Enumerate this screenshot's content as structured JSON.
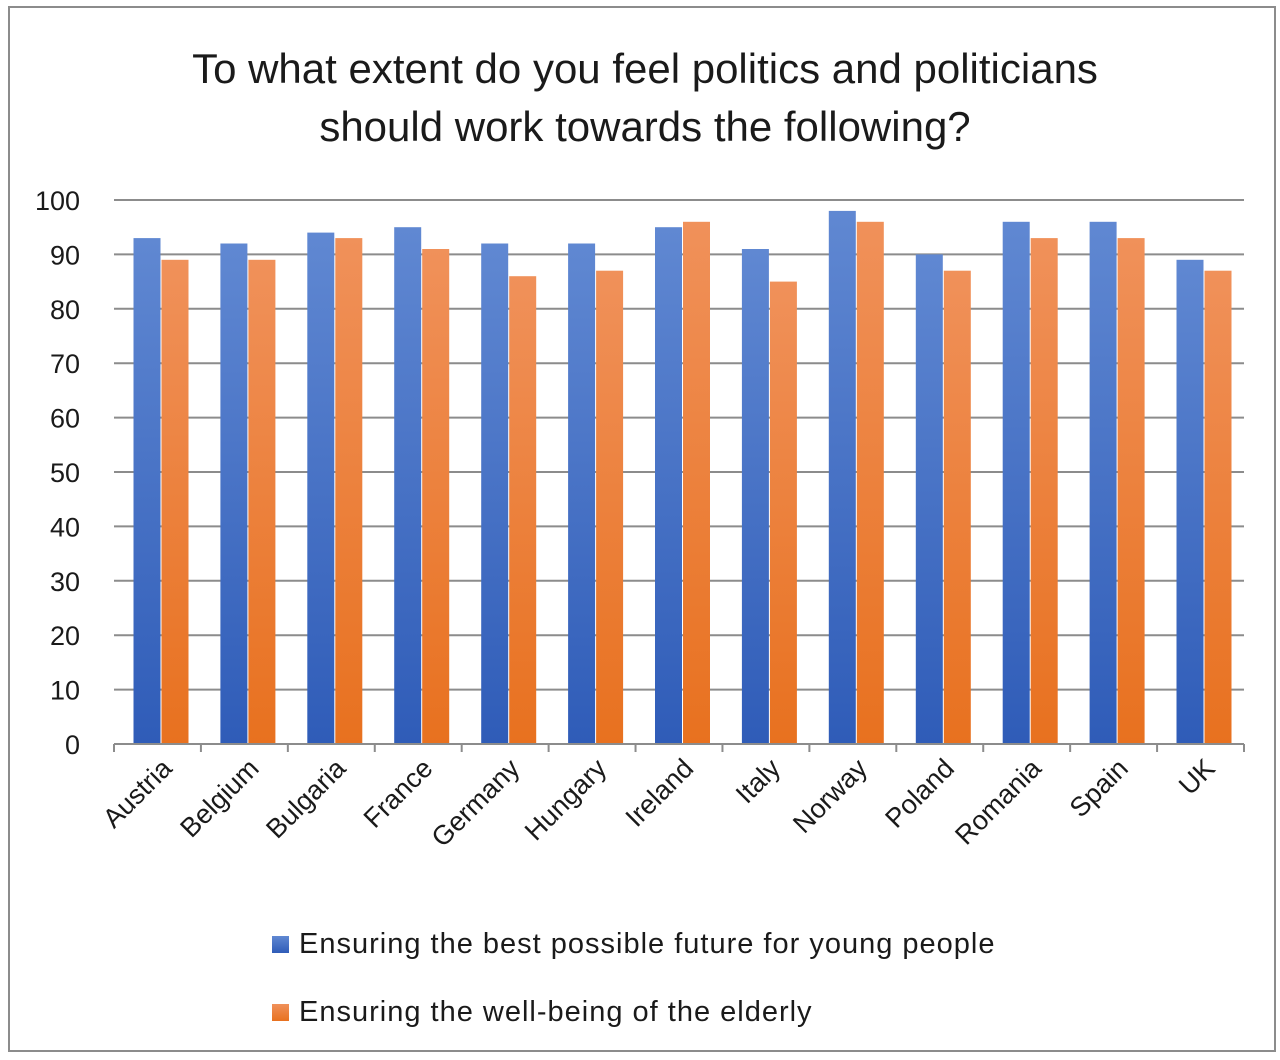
{
  "chart_data": {
    "type": "bar",
    "title": "To what extent do you feel politics and politicians should work towards the following?",
    "title_lines": [
      "To what extent do you feel politics and politicians",
      "should work towards the following?"
    ],
    "categories": [
      "Austria",
      "Belgium",
      "Bulgaria",
      "France",
      "Germany",
      "Hungary",
      "Ireland",
      "Italy",
      "Norway",
      "Poland",
      "Romania",
      "Spain",
      "UK"
    ],
    "series": [
      {
        "name": "Ensuring the best possible future for young people",
        "color": "#4472c4",
        "values": [
          93,
          92,
          94,
          95,
          92,
          92,
          95,
          91,
          98,
          90,
          96,
          96,
          89
        ]
      },
      {
        "name": "Ensuring the well-being of the elderly",
        "color": "#ed7d31",
        "values": [
          89,
          89,
          93,
          91,
          86,
          87,
          96,
          85,
          96,
          87,
          93,
          93,
          87
        ]
      }
    ],
    "ylim": [
      0,
      100
    ],
    "yticks": [
      0,
      10,
      20,
      30,
      40,
      50,
      60,
      70,
      80,
      90,
      100
    ],
    "xlabel": "",
    "ylabel": "",
    "grid": true,
    "legend": "bottom"
  }
}
